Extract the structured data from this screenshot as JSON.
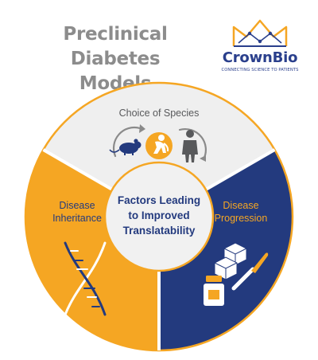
{
  "title": {
    "line1": "Preclinical",
    "line2": "Diabetes Models"
  },
  "logo": {
    "name": "CrownBio",
    "tagline": "CONNECTING SCIENCE TO PATIENTS"
  },
  "diagram": {
    "center": {
      "line1": "Factors Leading",
      "line2": "to Improved",
      "line3": "Translatability"
    },
    "segments": {
      "species": {
        "label": "Choice of Species"
      },
      "inheritance": {
        "line1": "Disease",
        "line2": "Inheritance"
      },
      "progression": {
        "line1": "Disease",
        "line2": "Progression"
      }
    }
  },
  "colors": {
    "orange": "#f5a623",
    "navy": "#233a7e",
    "light_gray": "#efefef",
    "icon_gray": "#58595b",
    "center_bg": "#f1f1f1",
    "center_text": "#233a7e",
    "title_gray": "#8c8c8c"
  }
}
